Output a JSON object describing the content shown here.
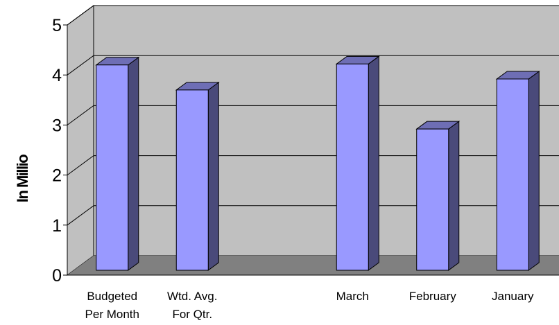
{
  "chart_data": {
    "type": "bar",
    "title": "",
    "xlabel": "",
    "ylabel": "In Millio",
    "categories": [
      [
        "Budgeted",
        "Per Month"
      ],
      [
        "Wtd. Avg.",
        "For Qtr."
      ],
      [
        ""
      ],
      [
        "March"
      ],
      [
        "February"
      ],
      [
        "January"
      ]
    ],
    "values": [
      4.2,
      3.7,
      null,
      4.22,
      2.92,
      3.92
    ],
    "ylim": [
      0,
      5
    ],
    "yticks": [
      "0",
      "1",
      "2",
      "3",
      "4",
      "5"
    ],
    "grid": true,
    "three_d": true,
    "colors": {
      "bar_front": "#9999FF",
      "bar_side": "#4A4A7A",
      "bar_top": "#6E6EB5",
      "wall": "#C0C0C0",
      "floor": "#808080",
      "grid": "#000000"
    }
  }
}
